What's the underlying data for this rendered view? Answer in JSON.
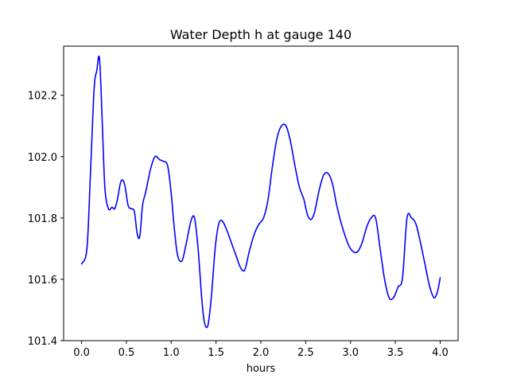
{
  "chart_data": {
    "type": "line",
    "title": "Water Depth h at gauge 140",
    "xlabel": "hours",
    "ylabel": "",
    "xlim": [
      -0.2,
      4.2
    ],
    "ylim": [
      101.4,
      102.36
    ],
    "xticks": [
      0.0,
      0.5,
      1.0,
      1.5,
      2.0,
      2.5,
      3.0,
      3.5,
      4.0
    ],
    "xtick_labels": [
      "0.0",
      "0.5",
      "1.0",
      "1.5",
      "2.0",
      "2.5",
      "3.0",
      "3.5",
      "4.0"
    ],
    "yticks": [
      101.4,
      101.6,
      101.8,
      102.0,
      102.2
    ],
    "ytick_labels": [
      "101.4",
      "101.6",
      "101.8",
      "102.0",
      "102.2"
    ],
    "grid": false,
    "series": [
      {
        "color": "#0000ff",
        "x": [
          0.0,
          0.06,
          0.1,
          0.14,
          0.17,
          0.2,
          0.23,
          0.26,
          0.3,
          0.34,
          0.37,
          0.4,
          0.44,
          0.48,
          0.52,
          0.56,
          0.59,
          0.62,
          0.65,
          0.68,
          0.72,
          0.77,
          0.82,
          0.87,
          0.91,
          0.96,
          1.0,
          1.03,
          1.07,
          1.12,
          1.17,
          1.22,
          1.26,
          1.3,
          1.34,
          1.37,
          1.41,
          1.45,
          1.49,
          1.53,
          1.57,
          1.62,
          1.67,
          1.72,
          1.77,
          1.82,
          1.87,
          1.93,
          1.98,
          2.03,
          2.08,
          2.13,
          2.18,
          2.23,
          2.28,
          2.33,
          2.38,
          2.43,
          2.48,
          2.52,
          2.56,
          2.6,
          2.65,
          2.7,
          2.75,
          2.8,
          2.84,
          2.88,
          2.93,
          2.98,
          3.03,
          3.08,
          3.13,
          3.18,
          3.23,
          3.28,
          3.33,
          3.38,
          3.43,
          3.48,
          3.53,
          3.58,
          3.63,
          3.68,
          3.73,
          3.78,
          3.83,
          3.88,
          3.93,
          3.97,
          4.0
        ],
        "y": [
          101.65,
          101.7,
          101.95,
          102.22,
          102.28,
          102.32,
          102.12,
          101.9,
          101.83,
          101.835,
          101.83,
          101.86,
          101.92,
          101.91,
          101.84,
          101.83,
          101.82,
          101.75,
          101.74,
          101.84,
          101.89,
          101.96,
          102.0,
          101.99,
          101.985,
          101.97,
          101.88,
          101.78,
          101.68,
          101.66,
          101.72,
          101.79,
          101.8,
          101.7,
          101.54,
          101.46,
          101.45,
          101.55,
          101.7,
          101.78,
          101.79,
          101.76,
          101.72,
          101.68,
          101.64,
          101.63,
          101.69,
          101.75,
          101.78,
          101.8,
          101.86,
          101.97,
          102.06,
          102.1,
          102.1,
          102.05,
          101.97,
          101.9,
          101.86,
          101.81,
          101.795,
          101.82,
          101.89,
          101.94,
          101.945,
          101.91,
          101.85,
          101.8,
          101.75,
          101.71,
          101.69,
          101.69,
          101.72,
          101.77,
          101.8,
          101.8,
          101.7,
          101.6,
          101.54,
          101.54,
          101.575,
          101.605,
          101.8,
          101.8,
          101.78,
          101.72,
          101.65,
          101.58,
          101.54,
          101.56,
          101.605
        ]
      }
    ]
  }
}
